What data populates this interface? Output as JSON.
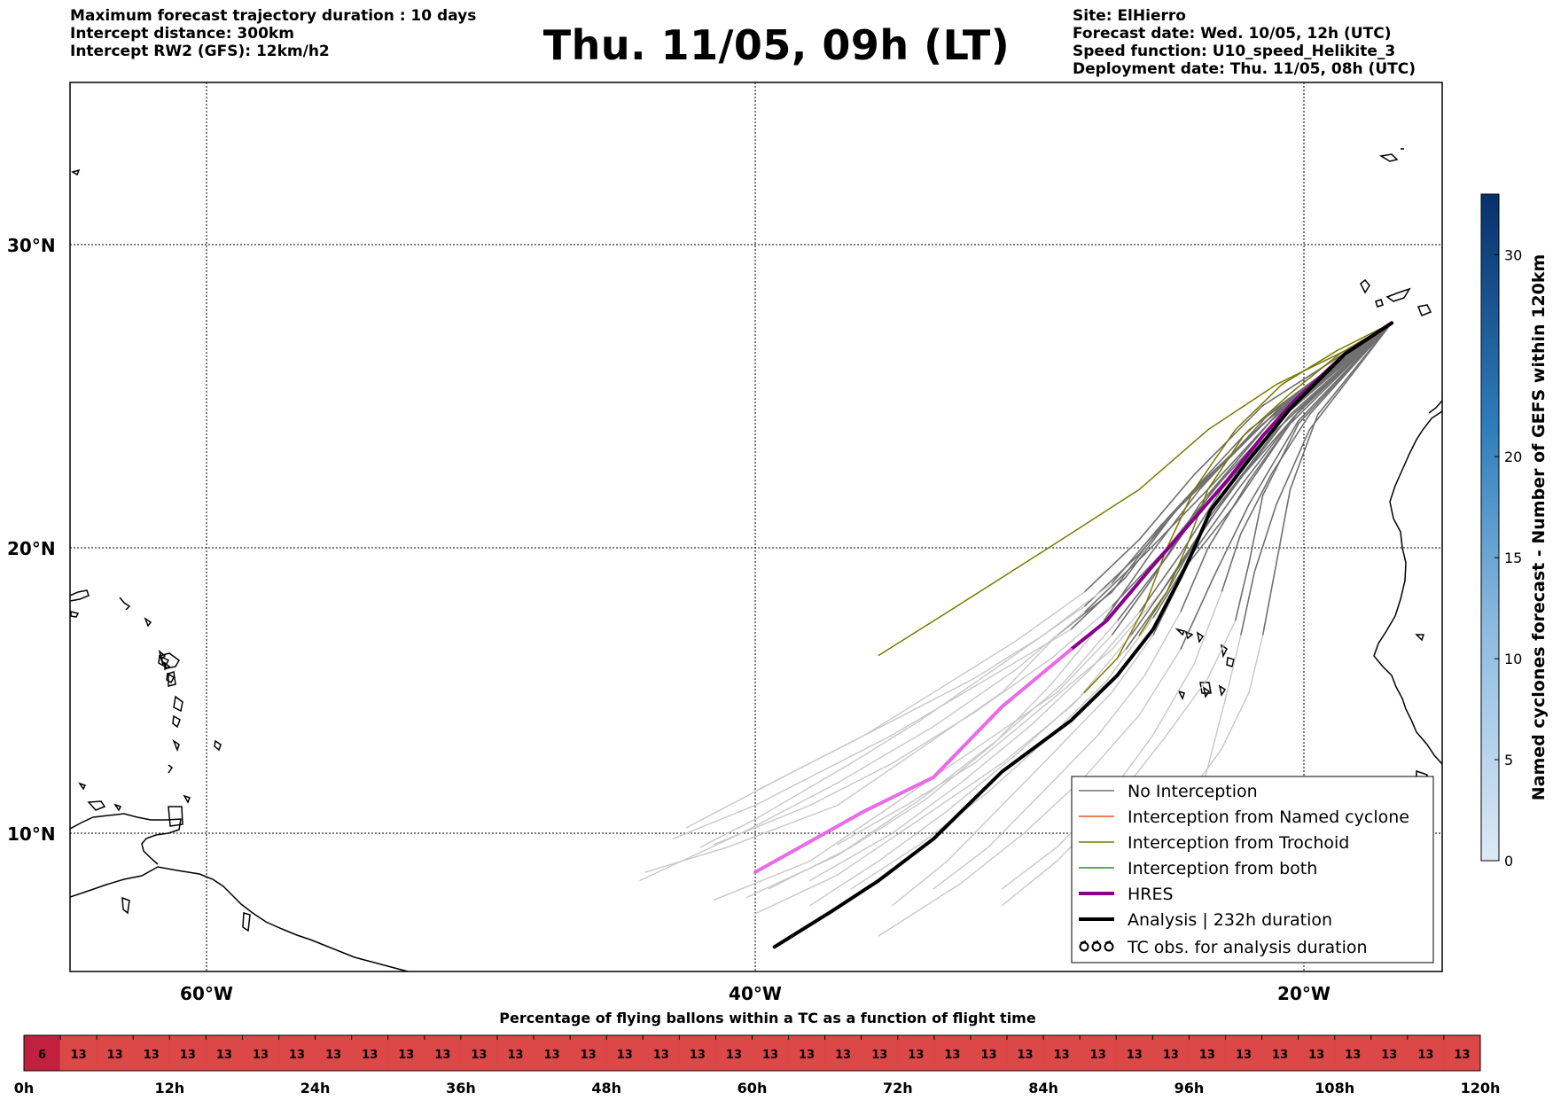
{
  "header": {
    "left_lines": [
      "Maximum forecast trajectory duration : 10 days",
      "Intercept distance: 300km",
      "Intercept RW2 (GFS):  12km/h2"
    ],
    "title": "Thu. 11/05, 09h (LT)",
    "right_lines": [
      "Site: ElHierro",
      "Forecast date: Wed. 10/05, 12h (UTC)",
      "Speed function: U10_speed_Helikite_3",
      "Deployment date: Thu. 11/05, 08h (UTC)"
    ]
  },
  "map": {
    "lon_labels": [
      "60°W",
      "40°W",
      "20°W"
    ],
    "lat_labels": [
      "30°N",
      "20°N",
      "10°N"
    ],
    "lon_ticks": [
      -60,
      -40,
      -20
    ],
    "lat_ticks": [
      30,
      20,
      10
    ],
    "extent": {
      "lon_min": -65,
      "lon_max": -15,
      "lat_min": 4.8,
      "lat_max": 34.1
    },
    "colors": {
      "no_interception": "#707070",
      "no_interception_late": "#c8c8c8",
      "named_cyclone": "#e8541e",
      "trochoid": "#7a7a00",
      "both": "#2a8a2a",
      "hres": "#8b008b",
      "hres_late": "#ea6aea",
      "analysis": "#000000"
    }
  },
  "legend": {
    "items": [
      {
        "label": "No Interception",
        "style": "no_interception"
      },
      {
        "label": "Interception from Named cyclone",
        "style": "named_cyclone"
      },
      {
        "label": "Interception from Trochoid",
        "style": "trochoid"
      },
      {
        "label": "Interception from both",
        "style": "both"
      },
      {
        "label": "HRES",
        "style": "hres"
      },
      {
        "label": "Analysis | 232h duration",
        "style": "analysis"
      },
      {
        "label": "TC obs. for analysis duration",
        "style": "tc_symbol"
      }
    ]
  },
  "colorbar": {
    "label": "Named cyclones forecast - Number of GEFS within 120km",
    "ticks": [
      "0",
      "5",
      "10",
      "15",
      "20",
      "30"
    ],
    "tick_values": [
      0,
      5,
      10,
      15,
      20,
      30
    ],
    "min": 0,
    "max": 33,
    "color_low": "#dde9f6",
    "color_high": "#08306b"
  },
  "timebar": {
    "title": "Percentage of flying ballons within a TC as a function of flight time",
    "cell_values": [
      "6",
      "13",
      "13",
      "13",
      "13",
      "13",
      "13",
      "13",
      "13",
      "13",
      "13",
      "13",
      "13",
      "13",
      "13",
      "13",
      "13",
      "13",
      "13",
      "13",
      "13",
      "13",
      "13",
      "13",
      "13",
      "13",
      "13",
      "13",
      "13",
      "13",
      "13",
      "13",
      "13",
      "13",
      "13",
      "13",
      "13",
      "13",
      "13",
      "13"
    ],
    "first_color": "#c1203f",
    "cell_color": "#dc4747",
    "hour_labels": [
      "0h",
      "12h",
      "24h",
      "36h",
      "48h",
      "60h",
      "72h",
      "84h",
      "96h",
      "108h",
      "120h"
    ]
  },
  "chart_data": {
    "type": "line",
    "title": "Thu. 11/05, 09h (LT)",
    "xlabel": "",
    "ylabel": "",
    "xlim": [
      -65,
      -15
    ],
    "ylim": [
      4.8,
      34.1
    ],
    "series": [
      {
        "name": "HRES",
        "x": [
          -16.8,
          -18.5,
          -20.3,
          -21.5,
          -22.8,
          -24.2,
          -25.6,
          -27.2,
          -28.5,
          -31,
          -33.5,
          -36,
          -40.0
        ],
        "y": [
          27.5,
          26.5,
          25.0,
          23.8,
          22.3,
          20.8,
          19.3,
          17.5,
          16.5,
          14.5,
          12.0,
          10.8,
          8.6
        ]
      },
      {
        "name": "Analysis | 232h duration",
        "x": [
          -16.8,
          -18.5,
          -20.5,
          -22.0,
          -23.4,
          -24.0,
          -24.5,
          -25.5,
          -26.8,
          -28.5,
          -31,
          -33.5,
          -35.5,
          -37.2,
          -39.3
        ],
        "y": [
          27.5,
          26.5,
          24.7,
          23.0,
          21.3,
          20.0,
          19.0,
          17.2,
          15.6,
          14.0,
          12.2,
          9.8,
          8.3,
          7.2,
          5.9
        ]
      }
    ]
  }
}
